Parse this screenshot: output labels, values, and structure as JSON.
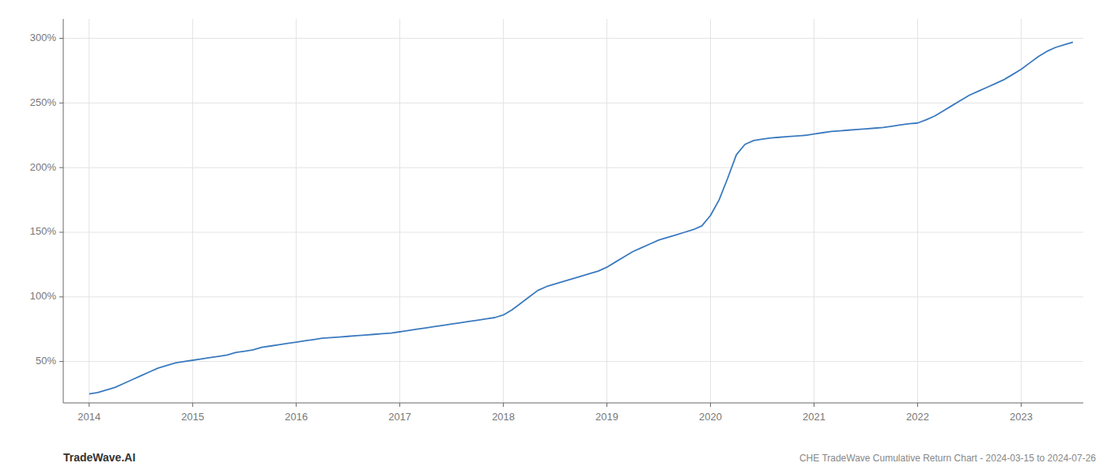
{
  "chart_data": {
    "type": "line",
    "title": "CHE TradeWave Cumulative Return Chart - 2024-03-15 to 2024-07-26",
    "annotations": [
      "TradeWave.AI"
    ],
    "color": "#3a7abf",
    "grid": true,
    "x": [
      2014.0,
      2014.083,
      2014.167,
      2014.25,
      2014.333,
      2014.417,
      2014.5,
      2014.583,
      2014.667,
      2014.75,
      2014.833,
      2014.917,
      2015.0,
      2015.083,
      2015.167,
      2015.25,
      2015.333,
      2015.417,
      2015.5,
      2015.583,
      2015.667,
      2015.75,
      2015.833,
      2015.917,
      2016.0,
      2016.083,
      2016.167,
      2016.25,
      2016.333,
      2016.417,
      2016.5,
      2016.583,
      2016.667,
      2016.75,
      2016.833,
      2016.917,
      2017.0,
      2017.083,
      2017.167,
      2017.25,
      2017.333,
      2017.417,
      2017.5,
      2017.583,
      2017.667,
      2017.75,
      2017.833,
      2017.917,
      2018.0,
      2018.083,
      2018.167,
      2018.25,
      2018.333,
      2018.417,
      2018.5,
      2018.583,
      2018.667,
      2018.75,
      2018.833,
      2018.917,
      2019.0,
      2019.083,
      2019.167,
      2019.25,
      2019.333,
      2019.417,
      2019.5,
      2019.583,
      2019.667,
      2019.75,
      2019.833,
      2019.917,
      2020.0,
      2020.083,
      2020.167,
      2020.25,
      2020.333,
      2020.417,
      2020.5,
      2020.583,
      2020.667,
      2020.75,
      2020.833,
      2020.917,
      2021.0,
      2021.083,
      2021.167,
      2021.25,
      2021.333,
      2021.417,
      2021.5,
      2021.583,
      2021.667,
      2021.75,
      2021.833,
      2021.917,
      2022.0,
      2022.083,
      2022.167,
      2022.25,
      2022.333,
      2022.417,
      2022.5,
      2022.583,
      2022.667,
      2022.75,
      2022.833,
      2022.917,
      2023.0,
      2023.083,
      2023.167,
      2023.25,
      2023.333,
      2023.417,
      2023.5
    ],
    "values": [
      25,
      26,
      28,
      30,
      33,
      36,
      39,
      42,
      45,
      47,
      49,
      50,
      51,
      52,
      53,
      54,
      55,
      57,
      58,
      59,
      61,
      62,
      63,
      64,
      65,
      66,
      67,
      68,
      68.5,
      69,
      69.5,
      70,
      70.5,
      71,
      71.5,
      72,
      73,
      74,
      75,
      76,
      77,
      78,
      79,
      80,
      81,
      82,
      83,
      84,
      86,
      90,
      95,
      100,
      105,
      108,
      110,
      112,
      114,
      116,
      118,
      120,
      123,
      127,
      131,
      135,
      138,
      141,
      144,
      146,
      148,
      150,
      152,
      155,
      163,
      175,
      192,
      210,
      218,
      221,
      222,
      223,
      223.5,
      224,
      224.5,
      225,
      226,
      227,
      228,
      228.5,
      229,
      229.5,
      230,
      230.5,
      231,
      232,
      233,
      234,
      234.5,
      237,
      240,
      244,
      248,
      252,
      256,
      259,
      262,
      265,
      268,
      272,
      276,
      281,
      286,
      290,
      293,
      295,
      297
    ],
    "xlim": [
      2013.75,
      2023.6
    ],
    "ylim": [
      18,
      315
    ],
    "xticks": [
      2014,
      2015,
      2016,
      2017,
      2018,
      2019,
      2020,
      2021,
      2022,
      2023
    ],
    "yticks": [
      {
        "value": 50,
        "label": "50%"
      },
      {
        "value": 100,
        "label": "100%"
      },
      {
        "value": 150,
        "label": "150%"
      },
      {
        "value": 200,
        "label": "200%"
      },
      {
        "value": 250,
        "label": "250%"
      },
      {
        "value": 300,
        "label": "300%"
      }
    ]
  }
}
